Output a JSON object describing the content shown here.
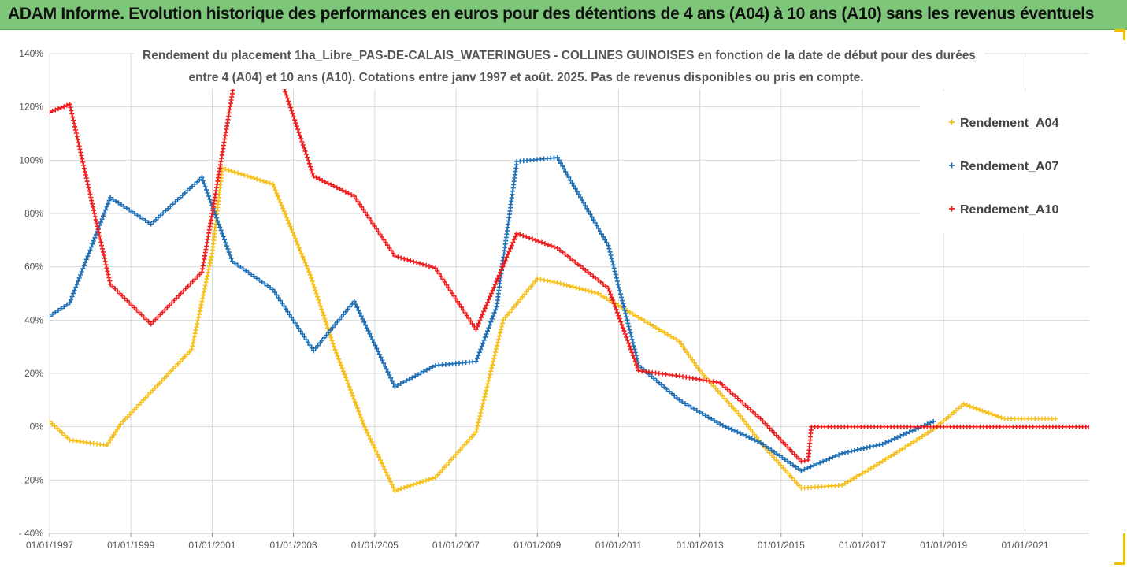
{
  "header": {
    "title": "ADAM Informe. Evolution historique des performances en euros pour des détentions de 4 ans (A04) à 10 ans (A10) sans les revenus éventuels"
  },
  "colors": {
    "header_bg": "#7dc67a",
    "frame_accent": "#f2c000",
    "A04": "#f7be16",
    "A07": "#1f6fb5",
    "A10": "#ee1c1c",
    "grid": "#d9d9d9"
  },
  "chart_data": {
    "type": "scatter",
    "title_line1": "Rendement du placement 1ha_Libre_PAS-DE-CALAIS_WATERINGUES - COLLINES GUINOISES en fonction de la date de début pour des durées",
    "title_line2": "entre 4 (A04) et 10 ans (A10). Cotations entre janv 1997 et août. 2025. Pas de revenus disponibles ou pris en compte.",
    "xlabel": "",
    "ylabel": "",
    "x_tick_labels": [
      "01/01/1997",
      "01/01/1999",
      "01/01/2001",
      "01/01/2003",
      "01/01/2005",
      "01/01/2007",
      "01/01/2009",
      "01/01/2011",
      "01/01/2013",
      "01/01/2015",
      "01/01/2017",
      "01/01/2019",
      "01/01/2021"
    ],
    "y_tick_labels": [
      "140%",
      "120%",
      "100%",
      "80%",
      "60%",
      "40%",
      "20%",
      "0%",
      "- 20%",
      "- 40%"
    ],
    "xlim": [
      "1997-01-01",
      "2022-08-01"
    ],
    "ylim": [
      -40,
      140
    ],
    "grid": true,
    "legend_position": "right",
    "marker": "+",
    "series": [
      {
        "name": "Rendement_A04",
        "color_key": "A04",
        "points": [
          [
            "1997-01-01",
            2
          ],
          [
            "1997-07-01",
            -5
          ],
          [
            "1998-06-01",
            -7
          ],
          [
            "1998-10-01",
            1
          ],
          [
            "2000-07-01",
            29
          ],
          [
            "2001-01-01",
            65
          ],
          [
            "2001-04-01",
            97
          ],
          [
            "2002-07-01",
            91
          ],
          [
            "2003-06-01",
            57
          ],
          [
            "2004-01-01",
            30
          ],
          [
            "2004-10-01",
            0
          ],
          [
            "2005-07-01",
            -24
          ],
          [
            "2006-07-01",
            -19
          ],
          [
            "2007-07-01",
            -2
          ],
          [
            "2008-03-01",
            40
          ],
          [
            "2009-01-01",
            55.5
          ],
          [
            "2009-07-01",
            54
          ],
          [
            "2010-07-01",
            50
          ],
          [
            "2011-07-01",
            41
          ],
          [
            "2012-07-01",
            32
          ],
          [
            "2013-01-01",
            21
          ],
          [
            "2014-01-01",
            4
          ],
          [
            "2014-07-01",
            -6
          ],
          [
            "2015-07-01",
            -23
          ],
          [
            "2016-07-01",
            -22
          ],
          [
            "2017-07-01",
            -13
          ],
          [
            "2018-10-01",
            -1
          ],
          [
            "2019-07-01",
            8.5
          ],
          [
            "2020-07-01",
            3
          ],
          [
            "2021-10-01",
            3
          ]
        ]
      },
      {
        "name": "Rendement_A07",
        "color_key": "A07",
        "points": [
          [
            "1997-01-01",
            41.5
          ],
          [
            "1997-07-01",
            46.5
          ],
          [
            "1998-07-01",
            86
          ],
          [
            "1999-07-01",
            76
          ],
          [
            "2000-10-01",
            93.5
          ],
          [
            "2001-07-01",
            62
          ],
          [
            "2002-07-01",
            51.5
          ],
          [
            "2003-07-01",
            28.5
          ],
          [
            "2004-07-01",
            47
          ],
          [
            "2005-07-01",
            15
          ],
          [
            "2006-07-01",
            23
          ],
          [
            "2007-07-01",
            24.5
          ],
          [
            "2008-01-01",
            45
          ],
          [
            "2008-07-01",
            99.5
          ],
          [
            "2009-07-01",
            101
          ],
          [
            "2010-10-01",
            68
          ],
          [
            "2011-07-01",
            23
          ],
          [
            "2012-07-01",
            10
          ],
          [
            "2013-07-01",
            1
          ],
          [
            "2014-07-01",
            -6
          ],
          [
            "2015-07-01",
            -16.5
          ],
          [
            "2016-07-01",
            -10
          ],
          [
            "2017-07-01",
            -6.5
          ],
          [
            "2018-10-01",
            2
          ]
        ]
      },
      {
        "name": "Rendement_A10",
        "color_key": "A10",
        "points": [
          [
            "1997-01-01",
            118
          ],
          [
            "1997-07-01",
            121
          ],
          [
            "1998-07-01",
            53.5
          ],
          [
            "1999-07-01",
            38.5
          ],
          [
            "2000-10-01",
            58
          ],
          [
            "2001-01-01",
            80
          ],
          [
            "2001-07-01",
            125
          ],
          [
            "2001-09-01",
            142
          ],
          [
            "2002-07-01",
            142
          ],
          [
            "2002-10-01",
            128
          ],
          [
            "2003-07-01",
            94
          ],
          [
            "2004-07-01",
            86.5
          ],
          [
            "2005-07-01",
            64
          ],
          [
            "2006-07-01",
            59.5
          ],
          [
            "2007-07-01",
            36.5
          ],
          [
            "2008-07-01",
            72.5
          ],
          [
            "2009-07-01",
            67
          ],
          [
            "2010-10-01",
            52
          ],
          [
            "2011-07-01",
            21
          ],
          [
            "2012-07-01",
            19
          ],
          [
            "2013-07-01",
            16.5
          ],
          [
            "2014-07-01",
            3
          ],
          [
            "2015-07-01",
            -13
          ],
          [
            "2015-09-01",
            -12.5
          ],
          [
            "2015-10-01",
            0
          ],
          [
            "2022-08-01",
            0
          ]
        ]
      }
    ]
  }
}
